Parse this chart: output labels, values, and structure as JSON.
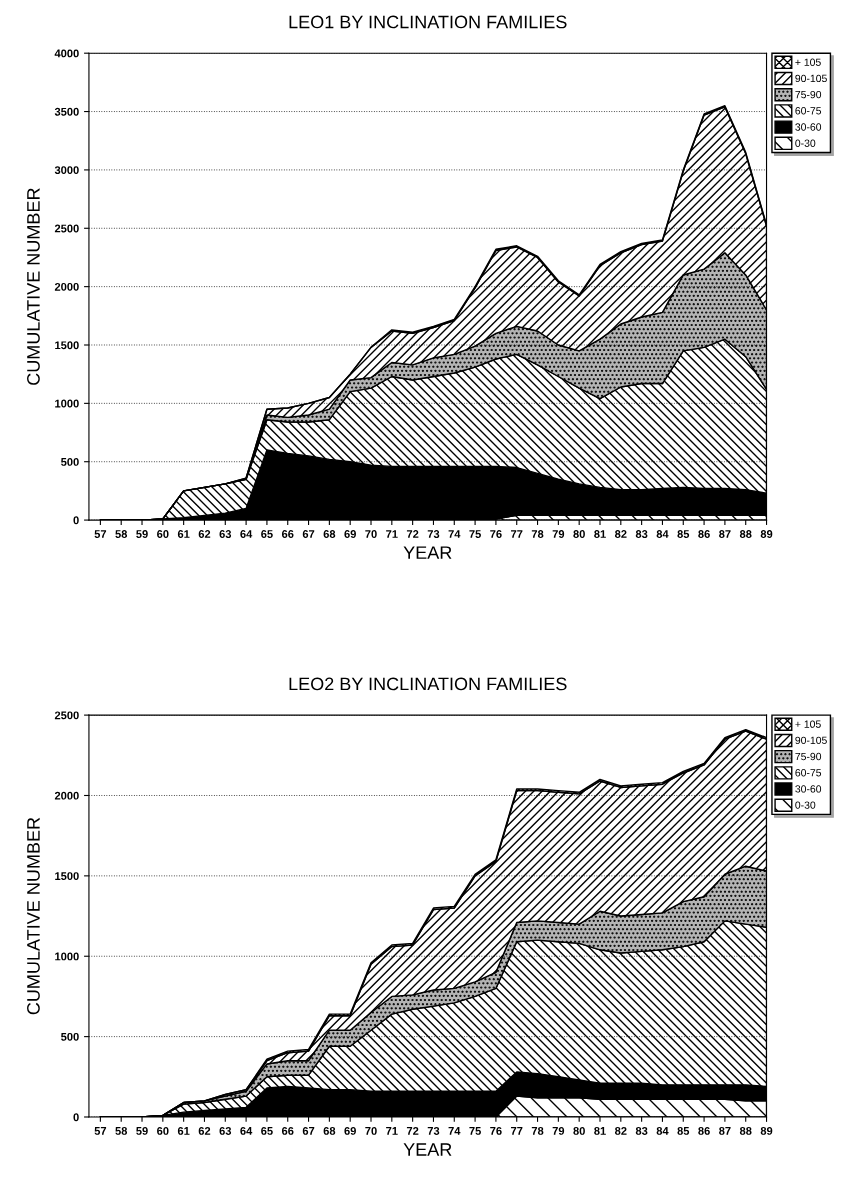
{
  "chart_data": [
    {
      "type": "area",
      "stacked": true,
      "title": "LEO1 BY INCLINATION FAMILIES",
      "xlabel": "YEAR",
      "ylabel": "CUMULATIVE NUMBER",
      "categories": [
        "57",
        "58",
        "59",
        "60",
        "61",
        "62",
        "63",
        "64",
        "65",
        "66",
        "67",
        "68",
        "69",
        "70",
        "71",
        "72",
        "73",
        "74",
        "75",
        "76",
        "77",
        "78",
        "79",
        "80",
        "81",
        "82",
        "83",
        "84",
        "85",
        "86",
        "87",
        "88",
        "89"
      ],
      "ylim": [
        0,
        4000
      ],
      "yticks": [
        0,
        500,
        1000,
        1500,
        2000,
        2500,
        3000,
        3500,
        4000
      ],
      "grid": "y",
      "legend": "right",
      "series": [
        {
          "name": "0-30",
          "color": "#000000",
          "values": [
            0,
            0,
            0,
            0,
            0,
            0,
            0,
            0,
            10,
            10,
            10,
            10,
            10,
            10,
            10,
            10,
            10,
            10,
            10,
            10,
            40,
            40,
            40,
            40,
            40,
            40,
            40,
            40,
            40,
            40,
            40,
            40,
            40
          ]
        },
        {
          "name": "30-60",
          "color": "#000000",
          "values": [
            0,
            0,
            0,
            10,
            20,
            40,
            60,
            100,
            590,
            560,
            540,
            510,
            490,
            460,
            450,
            450,
            450,
            450,
            450,
            450,
            410,
            360,
            310,
            270,
            240,
            220,
            220,
            230,
            240,
            230,
            230,
            220,
            190
          ]
        },
        {
          "name": "60-75",
          "color": "#000000",
          "values": [
            0,
            0,
            0,
            0,
            230,
            240,
            250,
            250,
            260,
            270,
            290,
            340,
            600,
            660,
            770,
            740,
            770,
            800,
            850,
            920,
            970,
            930,
            880,
            820,
            760,
            880,
            910,
            900,
            1170,
            1210,
            1280,
            1140,
            890
          ]
        },
        {
          "name": "75-90",
          "color": "#000000",
          "values": [
            0,
            0,
            0,
            0,
            0,
            0,
            0,
            0,
            40,
            40,
            60,
            90,
            100,
            90,
            120,
            130,
            160,
            160,
            180,
            220,
            240,
            290,
            270,
            320,
            510,
            540,
            570,
            610,
            650,
            670,
            740,
            700,
            680
          ]
        },
        {
          "name": "90-105",
          "color": "#000000",
          "values": [
            0,
            0,
            0,
            0,
            0,
            0,
            0,
            10,
            50,
            80,
            100,
            100,
            50,
            260,
            270,
            270,
            260,
            290,
            500,
            710,
            680,
            630,
            540,
            470,
            630,
            610,
            620,
            610,
            890,
            1320,
            1250,
            1040,
            720
          ]
        },
        {
          "name": "+ 105",
          "color": "#000000",
          "values": [
            0,
            0,
            0,
            0,
            0,
            0,
            0,
            0,
            0,
            0,
            0,
            0,
            0,
            0,
            10,
            10,
            10,
            10,
            10,
            10,
            10,
            10,
            10,
            10,
            10,
            10,
            10,
            10,
            10,
            10,
            10,
            10,
            10
          ]
        }
      ]
    },
    {
      "type": "area",
      "stacked": true,
      "title": "LEO2 BY INCLINATION FAMILIES",
      "xlabel": "YEAR",
      "ylabel": "CUMULATIVE NUMBER",
      "categories": [
        "57",
        "58",
        "59",
        "60",
        "61",
        "62",
        "63",
        "64",
        "65",
        "66",
        "67",
        "68",
        "69",
        "70",
        "71",
        "72",
        "73",
        "74",
        "75",
        "76",
        "77",
        "78",
        "79",
        "80",
        "81",
        "82",
        "83",
        "84",
        "85",
        "86",
        "87",
        "88",
        "89"
      ],
      "ylim": [
        0,
        2500
      ],
      "yticks": [
        0,
        500,
        1000,
        1500,
        2000,
        2500
      ],
      "grid": "y",
      "legend": "right",
      "series": [
        {
          "name": "0-30",
          "color": "#000000",
          "values": [
            0,
            0,
            0,
            0,
            0,
            0,
            0,
            0,
            0,
            0,
            0,
            0,
            0,
            0,
            0,
            0,
            0,
            0,
            0,
            0,
            130,
            120,
            120,
            120,
            110,
            110,
            110,
            110,
            110,
            110,
            110,
            100,
            100
          ]
        },
        {
          "name": "30-60",
          "color": "#000000",
          "values": [
            0,
            0,
            0,
            10,
            30,
            40,
            50,
            60,
            180,
            190,
            180,
            170,
            170,
            160,
            160,
            160,
            160,
            160,
            160,
            160,
            150,
            150,
            130,
            110,
            100,
            100,
            100,
            90,
            90,
            90,
            90,
            100,
            90
          ]
        },
        {
          "name": "60-75",
          "color": "#000000",
          "values": [
            0,
            0,
            0,
            0,
            50,
            50,
            60,
            70,
            70,
            70,
            80,
            270,
            270,
            380,
            480,
            510,
            530,
            550,
            590,
            640,
            810,
            830,
            840,
            850,
            830,
            810,
            820,
            840,
            860,
            890,
            1020,
            1000,
            990
          ]
        },
        {
          "name": "75-90",
          "color": "#000000",
          "values": [
            0,
            0,
            0,
            0,
            10,
            10,
            20,
            30,
            80,
            90,
            90,
            100,
            100,
            110,
            110,
            90,
            100,
            90,
            90,
            100,
            120,
            120,
            120,
            120,
            240,
            230,
            230,
            230,
            280,
            280,
            290,
            360,
            350
          ]
        },
        {
          "name": "90-105",
          "color": "#000000",
          "values": [
            0,
            0,
            0,
            0,
            0,
            0,
            10,
            10,
            20,
            50,
            60,
            90,
            90,
            300,
            310,
            310,
            500,
            500,
            660,
            690,
            820,
            810,
            810,
            810,
            810,
            800,
            800,
            800,
            800,
            820,
            840,
            840,
            820
          ]
        },
        {
          "name": "+ 105",
          "color": "#000000",
          "values": [
            0,
            0,
            0,
            0,
            0,
            0,
            0,
            0,
            10,
            10,
            10,
            10,
            10,
            10,
            10,
            10,
            10,
            10,
            10,
            10,
            10,
            10,
            10,
            10,
            10,
            10,
            10,
            10,
            10,
            10,
            10,
            10,
            10
          ]
        }
      ]
    }
  ]
}
